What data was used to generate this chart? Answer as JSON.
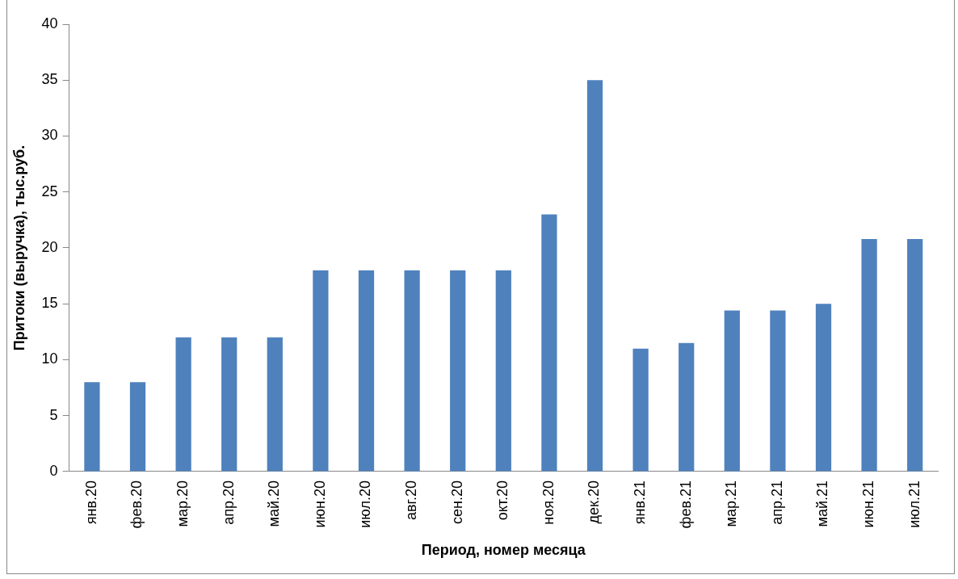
{
  "chart_data": {
    "type": "bar",
    "xlabel": "Период, номер месяца",
    "ylabel": "Притоки (выручка), тыс.руб.",
    "categories": [
      "янв.20",
      "фев.20",
      "мар.20",
      "апр.20",
      "май.20",
      "июн.20",
      "июл.20",
      "авг.20",
      "сен.20",
      "окт.20",
      "ноя.20",
      "дек.20",
      "янв.21",
      "фев.21",
      "мар.21",
      "апр.21",
      "май.21",
      "июн.21",
      "июл.21"
    ],
    "values": [
      8,
      8,
      12,
      12,
      12,
      18,
      18,
      18,
      18,
      18,
      23,
      35,
      11,
      11.5,
      14.4,
      14.4,
      15,
      20.8,
      20.8
    ],
    "color": "#4f81bd",
    "ylim": [
      0,
      40
    ],
    "yticks": [
      0,
      5,
      10,
      15,
      20,
      25,
      30,
      35,
      40
    ],
    "grid": false,
    "legend": false
  }
}
